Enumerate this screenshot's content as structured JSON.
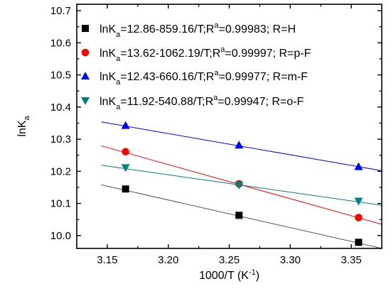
{
  "chart_data": {
    "type": "scatter",
    "xlabel": "1000/T (K",
    "xlabel_sup": "-1",
    "xlabel_suffix": ")",
    "ylabel": "lnK",
    "ylabel_sub": "a",
    "xlim": [
      3.125,
      3.375
    ],
    "ylim": [
      9.96,
      10.72
    ],
    "x_ticks": [
      "3.15",
      "3.20",
      "3.25",
      "3.30",
      "3.35"
    ],
    "y_ticks": [
      "10.0",
      "10.1",
      "10.2",
      "10.3",
      "10.4",
      "10.5",
      "10.6",
      "10.7"
    ],
    "grid": false,
    "legend_position": "top-right",
    "series": [
      {
        "name": "R=H",
        "marker": "square",
        "color": "#000000",
        "line_color": "#555555",
        "x": [
          3.165,
          3.258,
          3.356
        ],
        "y": [
          10.145,
          10.063,
          9.979
        ],
        "fit_intercept": 12.86,
        "fit_slope": -859.16,
        "legend": {
          "prefix": "lnK",
          "sub": "a",
          "eq": "=12.86-859.16/T;R",
          "sup": "a",
          "rest": "=0.99983; R=H"
        }
      },
      {
        "name": "R=p-F",
        "marker": "circle",
        "color": "#ff0000",
        "line_color": "#ff0000",
        "x": [
          3.165,
          3.258,
          3.356
        ],
        "y": [
          10.261,
          10.161,
          10.056
        ],
        "fit_intercept": 13.62,
        "fit_slope": -1062.19,
        "legend": {
          "prefix": "lnK",
          "sub": "a",
          "eq": "=13.62-1062.19/T;R",
          "sup": "a",
          "rest": "=0.99997; R=p-F"
        }
      },
      {
        "name": "R=m-F",
        "marker": "triangle-up",
        "color": "#0000ff",
        "line_color": "#0000ff",
        "x": [
          3.165,
          3.258,
          3.356
        ],
        "y": [
          10.343,
          10.282,
          10.215
        ],
        "fit_intercept": 12.43,
        "fit_slope": -660.16,
        "legend": {
          "prefix": "lnK",
          "sub": "a",
          "eq": "=12.43-660.16/T;R",
          "sup": "a",
          "rest": "=0.99977; R=m-F"
        }
      },
      {
        "name": "R=o-F",
        "marker": "triangle-down",
        "color": "#008080",
        "line_color": "#008080",
        "x": [
          3.165,
          3.258,
          3.356
        ],
        "y": [
          10.211,
          10.157,
          10.107
        ],
        "fit_intercept": 11.92,
        "fit_slope": -540.88,
        "legend": {
          "prefix": "lnK",
          "sub": "a",
          "eq": "=11.92-540.88/T;R",
          "sup": "a",
          "rest": "=0.99947; R=o-F"
        }
      }
    ]
  }
}
